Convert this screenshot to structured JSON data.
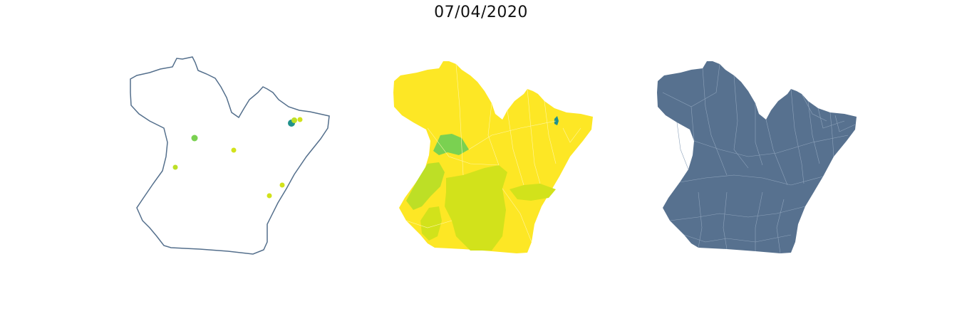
{
  "title": "07/04/2020",
  "colors": {
    "outline": "#546f8c",
    "viridis_low": "#21918c",
    "viridis_mid": "#7ad151",
    "viridis_hi": "#bddf26",
    "viridis_top": "#fde725",
    "lime": "#d2e21b",
    "slate_fill": "#57718f"
  },
  "maps": [
    {
      "name": "outline-with-points",
      "style": "outline",
      "points": [
        {
          "color": "#21918c"
        },
        {
          "color": "#bddf26"
        },
        {
          "color": "#d2e21b"
        },
        {
          "color": "#7ad151"
        },
        {
          "color": "#d2e21b"
        },
        {
          "color": "#bddf26"
        },
        {
          "color": "#d2e21b"
        },
        {
          "color": "#d2e21b"
        }
      ]
    },
    {
      "name": "choropleth-yellow",
      "style": "choropleth"
    },
    {
      "name": "municipality-boundaries",
      "style": "slate"
    }
  ]
}
